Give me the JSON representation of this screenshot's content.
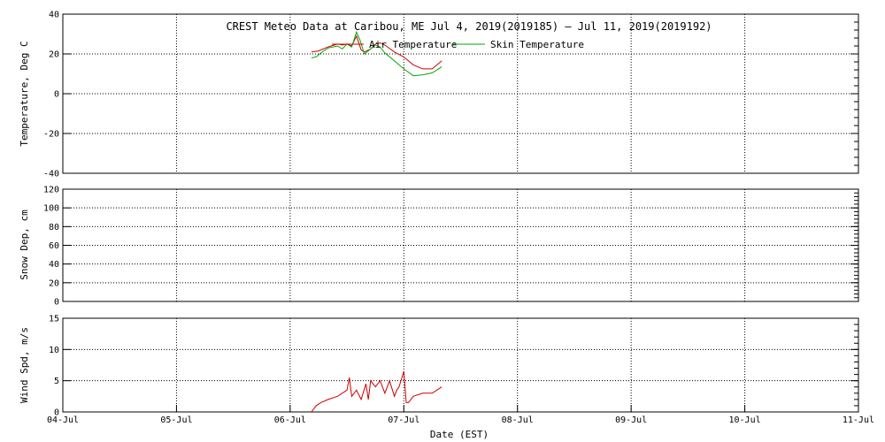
{
  "chart_data": {
    "type": "line",
    "title": "CREST Meteo Data at Caribou, ME   Jul  4, 2019(2019185) – Jul 11, 2019(2019192)",
    "xlabel": "Date (EST)",
    "x_tick_labels": [
      "04-Jul",
      "05-Jul",
      "06-Jul",
      "07-Jul",
      "08-Jul",
      "09-Jul",
      "10-Jul",
      "11-Jul"
    ],
    "xlim": [
      "2019-07-04",
      "2019-07-11"
    ],
    "grid": true,
    "legend_position": "top-center",
    "panels": [
      {
        "ylabel": "Temperature, Deg C",
        "ylim": [
          -40,
          40
        ],
        "yticks": [
          -40,
          -20,
          0,
          20,
          40
        ],
        "series": [
          {
            "name": "Air Temperature",
            "color": "#cc0000",
            "x": [
              "2019-07-06 04:30",
              "2019-07-06 06:00",
              "2019-07-06 08:00",
              "2019-07-06 10:00",
              "2019-07-06 11:00",
              "2019-07-06 12:00",
              "2019-07-06 13:00",
              "2019-07-06 14:00",
              "2019-07-06 15:00",
              "2019-07-06 15:40",
              "2019-07-06 17:00",
              "2019-07-06 18:00",
              "2019-07-06 19:00",
              "2019-07-06 20:00",
              "2019-07-06 22:00",
              "2019-07-07 00:00",
              "2019-07-07 02:00",
              "2019-07-07 04:00",
              "2019-07-07 06:00",
              "2019-07-07 08:00"
            ],
            "values": [
              21,
              21.5,
              23.5,
              25,
              24.5,
              25,
              24,
              29,
              22,
              21,
              22.5,
              25,
              25.5,
              24.5,
              21,
              18.5,
              14.5,
              12.5,
              12.5,
              16.5
            ]
          },
          {
            "name": "Skin Temperature",
            "color": "#00aa00",
            "x": [
              "2019-07-06 04:30",
              "2019-07-06 05:30",
              "2019-07-06 06:30",
              "2019-07-06 08:00",
              "2019-07-06 10:00",
              "2019-07-06 11:00",
              "2019-07-06 12:00",
              "2019-07-06 13:00",
              "2019-07-06 14:00",
              "2019-07-06 14:45",
              "2019-07-06 15:40",
              "2019-07-06 17:00",
              "2019-07-06 18:00",
              "2019-07-06 19:00",
              "2019-07-06 20:00",
              "2019-07-06 22:00",
              "2019-07-07 00:00",
              "2019-07-07 02:00",
              "2019-07-07 04:00",
              "2019-07-07 06:00",
              "2019-07-07 08:00"
            ],
            "values": [
              18,
              18.5,
              20.5,
              23,
              24,
              22.5,
              25,
              23.5,
              31,
              27,
              20,
              22.5,
              24.5,
              23.5,
              20.5,
              16.5,
              12.5,
              9,
              9.5,
              10.5,
              13.5
            ]
          }
        ]
      },
      {
        "ylabel": "Snow Dep, cm",
        "ylim": [
          0,
          120
        ],
        "yticks": [
          0,
          20,
          40,
          60,
          80,
          100,
          120
        ],
        "series": []
      },
      {
        "ylabel": "Wind Spd, m/s",
        "ylim": [
          0,
          15
        ],
        "yticks": [
          0,
          5,
          10,
          15
        ],
        "series": [
          {
            "color": "#cc0000",
            "x": [
              "2019-07-06 04:30",
              "2019-07-06 05:30",
              "2019-07-06 06:30",
              "2019-07-06 08:00",
              "2019-07-06 10:00",
              "2019-07-06 12:00",
              "2019-07-06 12:30",
              "2019-07-06 13:00",
              "2019-07-06 14:00",
              "2019-07-06 15:00",
              "2019-07-06 16:00",
              "2019-07-06 16:30",
              "2019-07-06 17:00",
              "2019-07-06 18:00",
              "2019-07-06 19:00",
              "2019-07-06 20:00",
              "2019-07-06 21:00",
              "2019-07-06 22:00",
              "2019-07-06 22:30",
              "2019-07-06 23:00",
              "2019-07-07 00:00",
              "2019-07-07 00:30",
              "2019-07-07 01:00",
              "2019-07-07 02:00",
              "2019-07-07 04:00",
              "2019-07-07 06:00",
              "2019-07-07 08:00"
            ],
            "values": [
              0,
              1,
              1.5,
              2,
              2.5,
              3.5,
              5.5,
              2.5,
              3.5,
              2,
              4.5,
              2,
              5,
              4,
              5,
              3,
              5,
              2.5,
              3.5,
              4,
              6.5,
              1.5,
              1.5,
              2.5,
              3,
              3,
              4
            ]
          }
        ]
      }
    ]
  }
}
